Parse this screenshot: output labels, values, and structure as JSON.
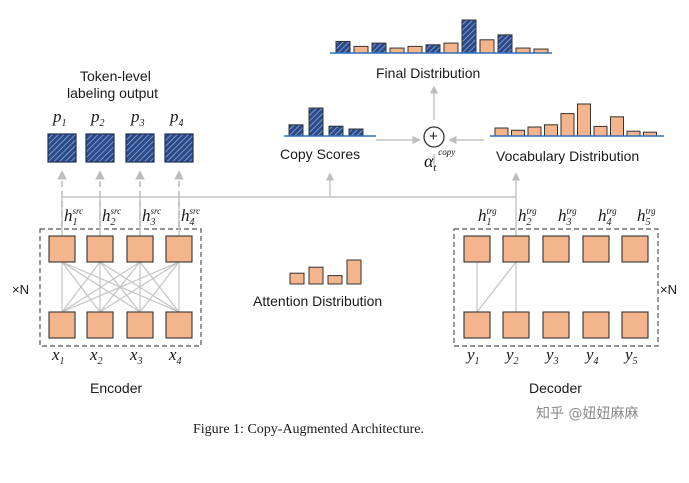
{
  "labels": {
    "token_level_line1": "Token-level",
    "token_level_line2": "labeling output",
    "copy_scores": "Copy Scores",
    "final_distribution": "Final Distribution",
    "vocabulary_distribution": "Vocabulary Distribution",
    "attention_distribution": "Attention Distribution",
    "encoder": "Encoder",
    "decoder": "Decoder",
    "times_n": "×N",
    "alpha_symbol": "α",
    "alpha_sub": "t",
    "alpha_sup": "copy",
    "plus_symbol": "+",
    "caption": "Figure 1: Copy-Augmented Architecture.",
    "watermark": "知乎 @妞妞麻麻"
  },
  "outputs": [
    {
      "base": "p",
      "sub": "1"
    },
    {
      "base": "p",
      "sub": "2"
    },
    {
      "base": "p",
      "sub": "3"
    },
    {
      "base": "p",
      "sub": "4"
    }
  ],
  "encoder_hidden": [
    {
      "base": "h",
      "sub": "1",
      "sup": "src"
    },
    {
      "base": "h",
      "sub": "2",
      "sup": "src"
    },
    {
      "base": "h",
      "sub": "3",
      "sup": "src"
    },
    {
      "base": "h",
      "sub": "4",
      "sup": "src"
    }
  ],
  "decoder_hidden": [
    {
      "base": "h",
      "sub": "1",
      "sup": "trg"
    },
    {
      "base": "h",
      "sub": "2",
      "sup": "trg"
    },
    {
      "base": "h",
      "sub": "3",
      "sup": "trg"
    },
    {
      "base": "h",
      "sub": "4",
      "sup": "trg"
    },
    {
      "base": "h",
      "sub": "5",
      "sup": "trg"
    }
  ],
  "encoder_inputs": [
    {
      "base": "x",
      "sub": "1"
    },
    {
      "base": "x",
      "sub": "2"
    },
    {
      "base": "x",
      "sub": "3"
    },
    {
      "base": "x",
      "sub": "4"
    }
  ],
  "decoder_inputs": [
    {
      "base": "y",
      "sub": "1"
    },
    {
      "base": "y",
      "sub": "2"
    },
    {
      "base": "y",
      "sub": "3"
    },
    {
      "base": "y",
      "sub": "4"
    },
    {
      "base": "y",
      "sub": "5"
    }
  ],
  "distributions": {
    "copy_scores": [
      0.4,
      1.0,
      0.35,
      0.25
    ],
    "attention": [
      0.45,
      0.7,
      0.35,
      1.0
    ],
    "vocabulary": [
      0.25,
      0.18,
      0.28,
      0.35,
      0.7,
      1.0,
      0.3,
      0.6,
      0.15,
      0.12
    ],
    "final": [
      0.35,
      0.2,
      0.3,
      0.15,
      0.2,
      0.25,
      0.3,
      1.0,
      0.4,
      0.55,
      0.15,
      0.12
    ]
  },
  "final_hatched": [
    true,
    false,
    true,
    false,
    false,
    true,
    false,
    true,
    false,
    true,
    false,
    false
  ],
  "colors": {
    "node_fill": "#f4b48c",
    "node_stroke": "#333333",
    "hatch_fill": "#2a4a8a",
    "hatch_line": "#9fb4e0",
    "bar_stroke": "#333333",
    "baseline": "#2e6fb8",
    "connector": "#bdbdbd",
    "dashed_box": "#555555"
  }
}
